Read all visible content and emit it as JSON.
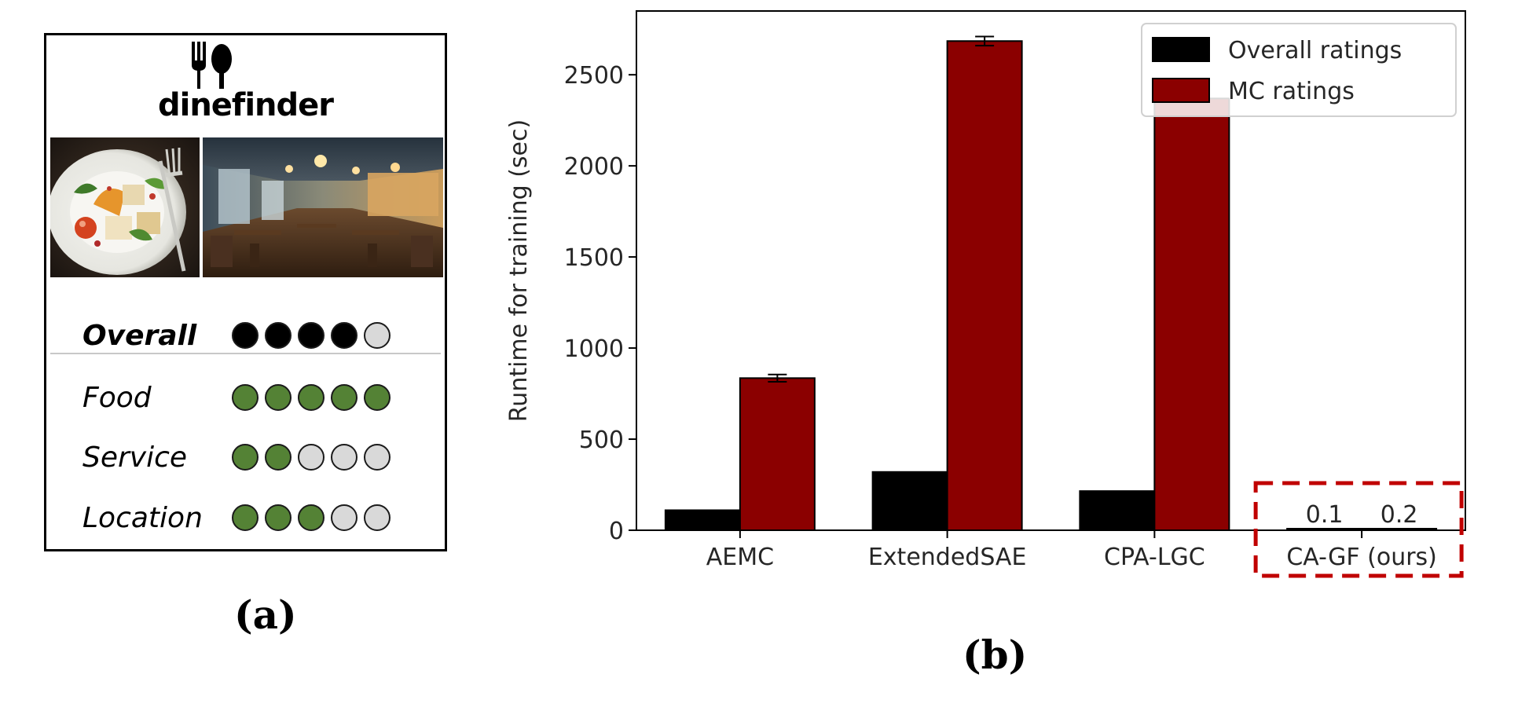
{
  "panel_a": {
    "brand": "dinefinder",
    "ratings": [
      {
        "label": "Overall",
        "score": 4,
        "max": 5,
        "fill_color": "#000000",
        "bold": true
      },
      {
        "label": "Food",
        "score": 5,
        "max": 5,
        "fill_color": "#548235",
        "bold": false
      },
      {
        "label": "Service",
        "score": 2,
        "max": 5,
        "fill_color": "#548235",
        "bold": false
      },
      {
        "label": "Location",
        "score": 3,
        "max": 5,
        "fill_color": "#548235",
        "bold": false
      }
    ],
    "empty_color": "#d9d9d9",
    "caption": "(a)"
  },
  "panel_b": {
    "caption": "(b)"
  },
  "chart_data": {
    "type": "bar",
    "categories": [
      "AEMC",
      "ExtendedSAE",
      "CPA-LGC",
      "CA-GF (ours)"
    ],
    "series": [
      {
        "name": "Overall ratings",
        "values": [
          110,
          320,
          215,
          0.1
        ],
        "color": "#000000"
      },
      {
        "name": "MC ratings",
        "values": [
          835,
          2685,
          2370,
          0.2
        ],
        "color": "#8b0000",
        "error": [
          20,
          25,
          0,
          0
        ]
      }
    ],
    "annotations": [
      "0.1",
      "0.2"
    ],
    "ylabel": "Runtime for training (sec)",
    "xlabel": "",
    "ylim": [
      0,
      2850
    ],
    "yticks": [
      0,
      500,
      1000,
      1500,
      2000,
      2500
    ],
    "legend": "top-right",
    "grid": false,
    "highlight": {
      "category": "CA-GF (ours)",
      "style": "dashed-box",
      "color": "#c00000"
    }
  }
}
